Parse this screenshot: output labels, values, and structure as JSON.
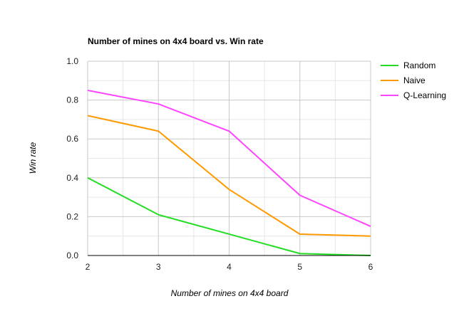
{
  "chart_data": {
    "type": "line",
    "title": "Number of mines on 4x4 board vs. Win rate",
    "xlabel": "Number of mines on 4x4 board",
    "ylabel": "Win rate",
    "x": [
      2,
      3,
      4,
      5,
      6
    ],
    "x_ticks": [
      "2",
      "3",
      "4",
      "5",
      "6"
    ],
    "y_ticks": [
      "0.0",
      "0.2",
      "0.4",
      "0.6",
      "0.8",
      "1.0"
    ],
    "xlim": [
      2,
      6
    ],
    "ylim": [
      0,
      1
    ],
    "grid": true,
    "legend_position": "top-right",
    "series": [
      {
        "name": "Random",
        "color": "#22dd22",
        "values": [
          0.4,
          0.21,
          0.11,
          0.01,
          0.0
        ]
      },
      {
        "name": "Naive",
        "color": "#ff9900",
        "values": [
          0.72,
          0.64,
          0.34,
          0.11,
          0.1
        ]
      },
      {
        "name": "Q-Learning",
        "color": "#ff44ff",
        "values": [
          0.85,
          0.78,
          0.64,
          0.31,
          0.15
        ]
      }
    ]
  }
}
